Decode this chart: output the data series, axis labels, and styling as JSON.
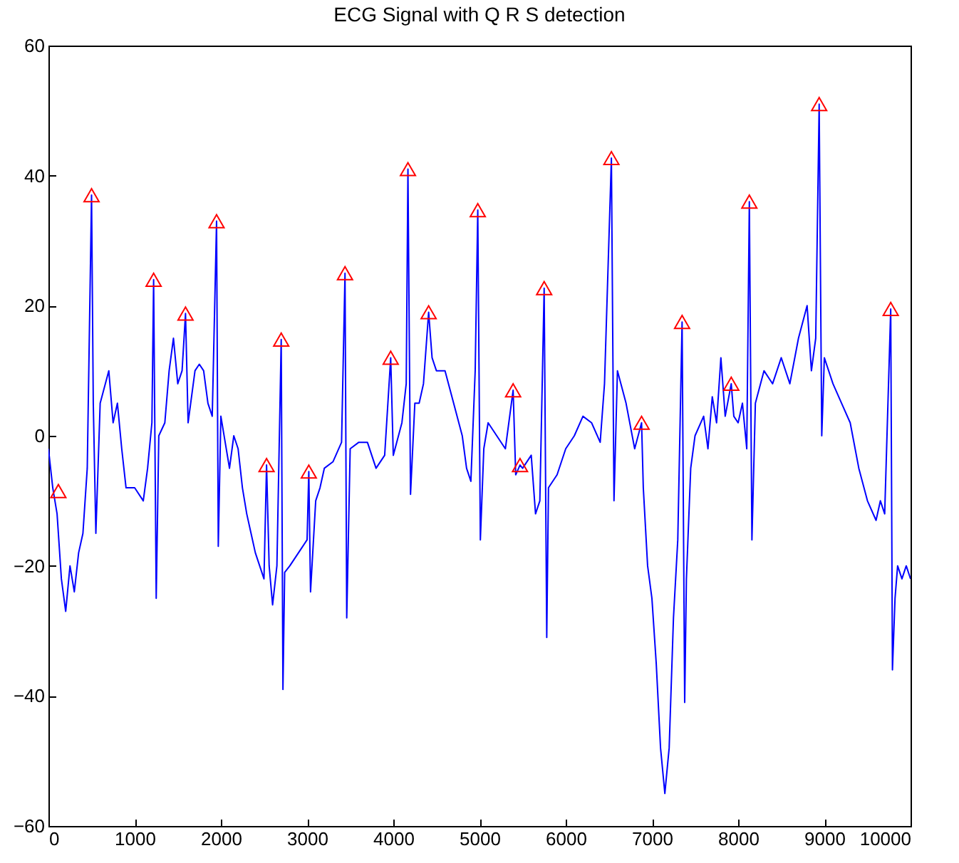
{
  "chart_data": {
    "type": "line",
    "title": "ECG Signal with  Q R S detection",
    "xlim": [
      0,
      10000
    ],
    "xticks": [
      0,
      1000,
      2000,
      3000,
      4000,
      5000,
      6000,
      7000,
      8000,
      9000,
      10000
    ],
    "ylim": [
      -60,
      60
    ],
    "yticks": [
      -60,
      -40,
      -20,
      0,
      20,
      40,
      60
    ],
    "grid": false,
    "series": [
      {
        "color": "#0000ff",
        "x": [
          0,
          50,
          100,
          150,
          200,
          250,
          300,
          350,
          400,
          450,
          500,
          520,
          550,
          600,
          700,
          750,
          800,
          850,
          900,
          1000,
          1100,
          1150,
          1200,
          1220,
          1250,
          1280,
          1350,
          1400,
          1450,
          1500,
          1550,
          1590,
          1620,
          1700,
          1750,
          1800,
          1850,
          1900,
          1950,
          1970,
          2000,
          2050,
          2100,
          2150,
          2200,
          2250,
          2300,
          2350,
          2400,
          2450,
          2500,
          2530,
          2560,
          2600,
          2650,
          2700,
          2720,
          2740,
          2800,
          2900,
          3000,
          3020,
          3040,
          3100,
          3150,
          3200,
          3300,
          3400,
          3440,
          3460,
          3500,
          3600,
          3700,
          3800,
          3900,
          3970,
          4000,
          4100,
          4150,
          4170,
          4200,
          4250,
          4300,
          4350,
          4410,
          4450,
          4500,
          4600,
          4700,
          4800,
          4850,
          4900,
          4950,
          4980,
          5010,
          5050,
          5100,
          5200,
          5300,
          5390,
          5420,
          5470,
          5500,
          5600,
          5650,
          5700,
          5750,
          5780,
          5800,
          5900,
          6000,
          6100,
          6200,
          6300,
          6400,
          6450,
          6530,
          6560,
          6600,
          6700,
          6800,
          6880,
          6900,
          6950,
          7000,
          7050,
          7100,
          7150,
          7200,
          7250,
          7300,
          7350,
          7380,
          7400,
          7450,
          7500,
          7600,
          7650,
          7700,
          7750,
          7800,
          7850,
          7920,
          7950,
          8000,
          8050,
          8100,
          8130,
          8160,
          8200,
          8300,
          8400,
          8500,
          8600,
          8700,
          8800,
          8850,
          8900,
          8940,
          8970,
          9000,
          9100,
          9200,
          9300,
          9400,
          9500,
          9600,
          9650,
          9700,
          9770,
          9790,
          9820,
          9850,
          9900,
          9950,
          10000
        ],
        "values": [
          -2,
          -8,
          -12,
          -22,
          -27,
          -20,
          -24,
          -18,
          -15,
          -5,
          37,
          5,
          -15,
          5,
          10,
          2,
          5,
          -2,
          -8,
          -8,
          -10,
          -5,
          2,
          24,
          -25,
          0,
          2,
          10,
          15,
          8,
          10,
          18.8,
          2,
          10,
          11,
          10,
          5,
          3,
          33,
          -17,
          3,
          -1,
          -5,
          0,
          -2,
          -8,
          -12,
          -15,
          -18,
          -20,
          -22,
          -4.5,
          -20,
          -26,
          -20,
          14.8,
          -39,
          -21,
          -20,
          -18,
          -16,
          -5.5,
          -24,
          -10,
          -8,
          -5,
          -4,
          -1,
          25,
          -28,
          -2,
          -1,
          -1,
          -5,
          -3,
          12,
          -3,
          2,
          8,
          41,
          -9,
          5,
          5,
          8,
          19,
          12,
          10,
          10,
          5,
          0,
          -5,
          -7,
          10,
          34.7,
          -16,
          -2,
          2,
          0,
          -2,
          7,
          -6,
          -4.5,
          -5,
          -3,
          -12,
          -10,
          22.7,
          -31,
          -8,
          -6,
          -2,
          0,
          3,
          2,
          -1,
          8,
          42.7,
          -10,
          10,
          5,
          -2,
          2,
          -8,
          -20,
          -25,
          -35,
          -48,
          -55,
          -48,
          -28,
          -16,
          17.5,
          -41,
          -22,
          -5,
          0,
          3,
          -2,
          6,
          2,
          12,
          3,
          8,
          3,
          2,
          5,
          -2,
          36,
          -16,
          5,
          10,
          8,
          12,
          8,
          15,
          20,
          10,
          15,
          51,
          0,
          12,
          8,
          5,
          2,
          -5,
          -10,
          -13,
          -10,
          -12,
          19.5,
          -36,
          -25,
          -20,
          -22,
          -20,
          -22
        ]
      },
      {
        "type": "scatter",
        "color": "#ff0000",
        "marker": "triangle",
        "x": [
          115,
          500,
          1220,
          1590,
          1950,
          2530,
          2700,
          3020,
          3440,
          3970,
          4170,
          4410,
          4980,
          5390,
          5470,
          5750,
          6530,
          6880,
          7350,
          7920,
          8130,
          8940,
          9770
        ],
        "values": [
          -8.5,
          37,
          24,
          18.8,
          33,
          -4.5,
          14.8,
          -5.5,
          25,
          12,
          41,
          19,
          34.7,
          7,
          -4.5,
          22.7,
          42.7,
          2,
          17.5,
          8,
          36,
          51,
          19.5
        ]
      }
    ]
  }
}
